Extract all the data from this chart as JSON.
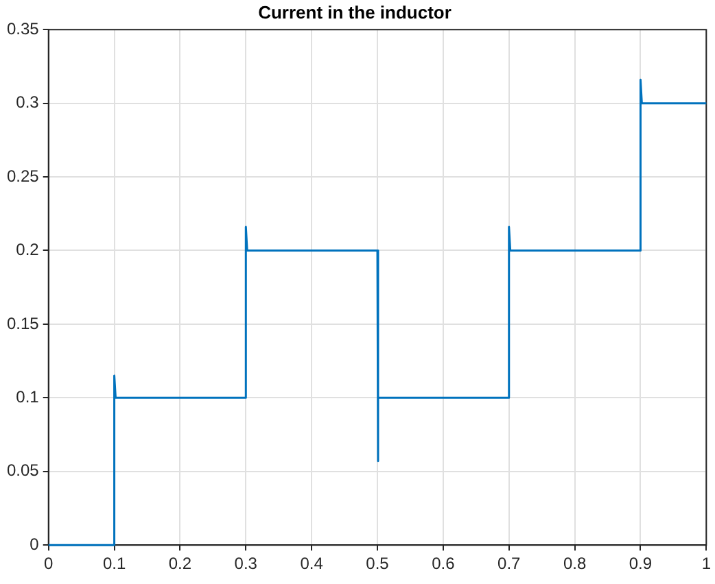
{
  "chart_data": {
    "type": "line",
    "title": "Current in the inductor",
    "x": [
      0,
      0.1,
      0.1,
      0.102,
      0.3,
      0.3,
      0.302,
      0.5,
      0.5,
      0.502,
      0.7,
      0.7,
      0.702,
      0.9,
      0.9,
      0.902,
      1
    ],
    "series": [
      {
        "color": "#0072bd",
        "values": [
          0,
          0,
          0.115,
          0.1,
          0.1,
          0.216,
          0.2,
          0.2,
          0.057,
          0.1,
          0.1,
          0.216,
          0.2,
          0.2,
          0.316,
          0.3,
          0.3
        ]
      }
    ],
    "xlim": [
      0,
      1
    ],
    "xticks": [
      0,
      0.1,
      0.2,
      0.3,
      0.4,
      0.5,
      0.6,
      0.7,
      0.8,
      0.9,
      1
    ],
    "ylim": [
      0,
      0.35
    ],
    "yticks": [
      0,
      0.05,
      0.1,
      0.15,
      0.2,
      0.25,
      0.3,
      0.35
    ],
    "grid": true,
    "legend": false,
    "marker": "none",
    "line_style": "solid"
  }
}
